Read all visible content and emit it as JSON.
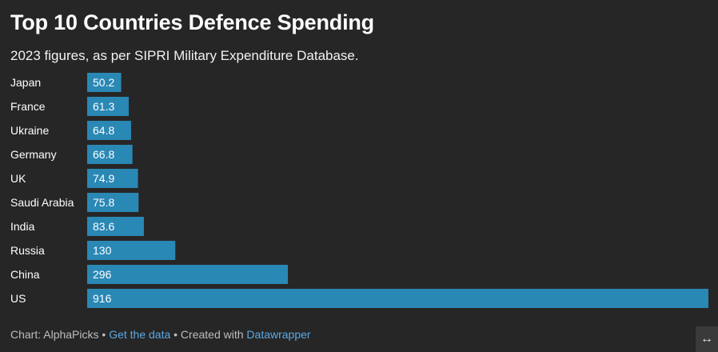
{
  "header": {
    "title": "Top 10 Countries Defence Spending",
    "subtitle": "2023 figures, as per SIPRI Military Expenditure Database."
  },
  "footer": {
    "chart_prefix": "Chart: AlphaPicks",
    "sep1": " • ",
    "get_data": "Get the data",
    "sep2": " • Created with ",
    "datawrapper": "Datawrapper"
  },
  "expand_icon": "↔",
  "colors": {
    "bar": "#2a88b5",
    "background": "#262626"
  },
  "chart_data": {
    "type": "bar",
    "orientation": "horizontal",
    "categories": [
      "Japan",
      "France",
      "Ukraine",
      "Germany",
      "UK",
      "Saudi Arabia",
      "India",
      "Russia",
      "China",
      "US"
    ],
    "values": [
      50.2,
      61.3,
      64.8,
      66.8,
      74.9,
      75.8,
      83.6,
      130,
      296,
      916
    ],
    "value_labels": [
      "50.2",
      "61.3",
      "64.8",
      "66.8",
      "74.9",
      "75.8",
      "83.6",
      "130",
      "296",
      "916"
    ],
    "xlim": [
      0,
      916
    ],
    "grid": false,
    "data_labels": "inside-left"
  }
}
